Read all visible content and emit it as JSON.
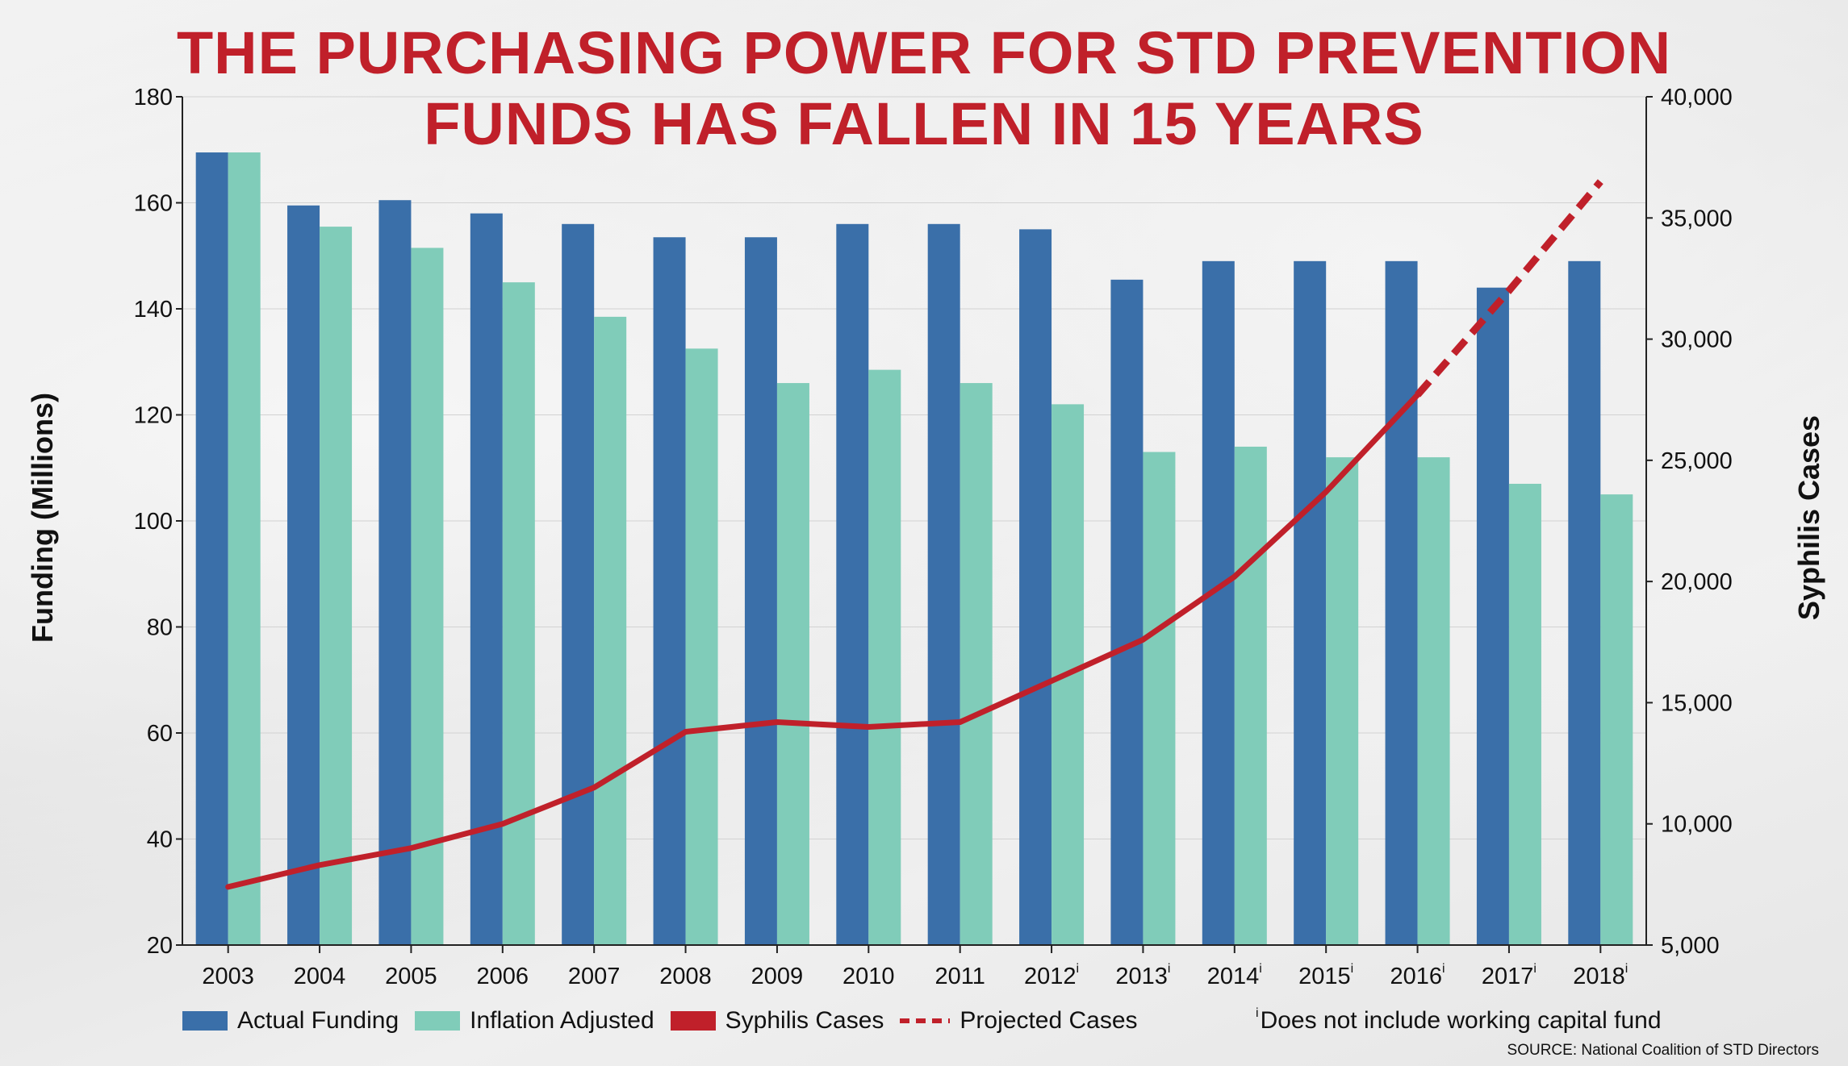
{
  "title_line1": "THE PURCHASING POWER FOR STD PREVENTION",
  "title_line2": "FUNDS HAS FALLEN IN 15 YEARS",
  "footnote_mark": "i",
  "footnote_text": "Does not include working capital fund",
  "source": "SOURCE: National Coalition of STD Directors",
  "colors": {
    "actual": "#3a6fa9",
    "inflation": "#80ccb9",
    "syphilis": "#c0202a",
    "title": "#c0202a"
  },
  "chart_data": {
    "type": "bar",
    "title": "THE PURCHASING POWER FOR STD PREVENTION FUNDS HAS FALLEN IN 15 YEARS",
    "ylabel": "Funding (Millions)",
    "y2label": "Syphilis Cases",
    "ylim": [
      20,
      180
    ],
    "y2lim": [
      5000,
      40000
    ],
    "yticks": [
      "20",
      "40",
      "60",
      "80",
      "100",
      "120",
      "140",
      "160",
      "180"
    ],
    "y2ticks": [
      "5,000",
      "10,000",
      "15,000",
      "20,000",
      "25,000",
      "30,000",
      "35,000",
      "40,000"
    ],
    "categories": [
      "2003",
      "2004",
      "2005",
      "2006",
      "2007",
      "2008",
      "2009",
      "2010",
      "2011",
      "2012",
      "2013",
      "2014",
      "2015",
      "2016",
      "2017",
      "2018"
    ],
    "category_footnote": [
      false,
      false,
      false,
      false,
      false,
      false,
      false,
      false,
      false,
      true,
      true,
      true,
      true,
      true,
      true,
      true
    ],
    "series": [
      {
        "name": "Actual Funding",
        "axis": "left",
        "type": "bar",
        "values": [
          169.5,
          159.5,
          160.5,
          158,
          156,
          153.5,
          153.5,
          156,
          156,
          155,
          145.5,
          149,
          149,
          149,
          144,
          149
        ]
      },
      {
        "name": "Inflation Adjusted",
        "axis": "left",
        "type": "bar",
        "values": [
          169.5,
          155.5,
          151.5,
          145,
          138.5,
          132.5,
          126,
          128.5,
          126,
          122,
          113,
          114,
          112,
          112,
          107,
          105
        ]
      },
      {
        "name": "Syphilis Cases",
        "axis": "right",
        "type": "line",
        "values": [
          7400,
          8300,
          9000,
          10000,
          11500,
          13800,
          14200,
          14000,
          14200,
          15900,
          17600,
          20200,
          23700,
          27700,
          null,
          null
        ]
      },
      {
        "name": "Projected Cases",
        "axis": "right",
        "type": "line-dashed",
        "values": [
          null,
          null,
          null,
          null,
          null,
          null,
          null,
          null,
          null,
          null,
          null,
          null,
          null,
          27700,
          32000,
          36500
        ]
      }
    ],
    "grid": true,
    "legend_position": "bottom-left"
  }
}
